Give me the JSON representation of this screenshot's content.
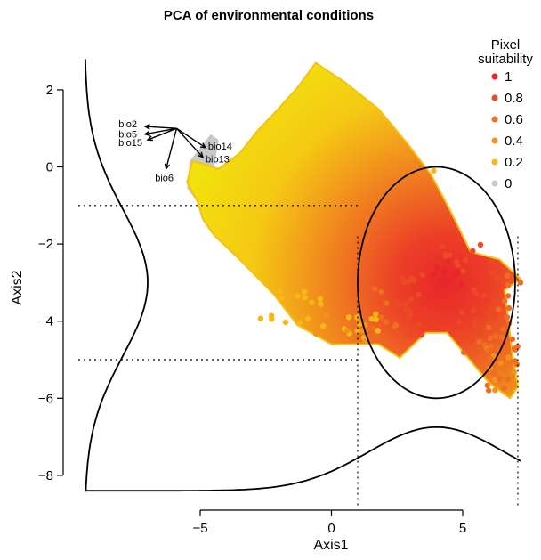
{
  "chart_data": {
    "type": "scatter",
    "title": "PCA of environmental conditions",
    "xlabel": "Axis1",
    "ylabel": "Axis2",
    "xlim": [
      -10.1,
      7.3
    ],
    "ylim": [
      -8.6,
      2.9
    ],
    "x_ticks": [
      {
        "value": -5,
        "label": "−5"
      },
      {
        "value": 0,
        "label": "0"
      },
      {
        "value": 5,
        "label": "5"
      }
    ],
    "y_ticks": [
      {
        "value": 2,
        "label": "2"
      },
      {
        "value": 0,
        "label": "0"
      },
      {
        "value": -2,
        "label": "−2"
      },
      {
        "value": -4,
        "label": "−4"
      },
      {
        "value": -6,
        "label": "−6"
      },
      {
        "value": -8,
        "label": "−8"
      }
    ],
    "grid": false,
    "legend": {
      "title_lines": [
        "Pixel",
        "suitability"
      ],
      "placement": "top-right",
      "entries": [
        {
          "label": "1",
          "color": "#e8262a"
        },
        {
          "label": "0.8",
          "color": "#ec4a26"
        },
        {
          "label": "0.6",
          "color": "#ef6f22"
        },
        {
          "label": "0.4",
          "color": "#f2931d"
        },
        {
          "label": "0.2",
          "color": "#f5b815"
        },
        {
          "label": "0",
          "color": "#c9c9c9"
        }
      ]
    },
    "point_cloud": {
      "description_values": "environmental pixel scores on PCA axes, colored by suitability",
      "outline": [
        [
          -5.3,
          0.15
        ],
        [
          -5.5,
          -0.4
        ],
        [
          -5.1,
          -0.9
        ],
        [
          -4.9,
          -1.35
        ],
        [
          -4.5,
          -1.75
        ],
        [
          -3.5,
          -2.4
        ],
        [
          -2.2,
          -3.3
        ],
        [
          -1.3,
          -4.1
        ],
        [
          0.0,
          -4.6
        ],
        [
          1.8,
          -4.6
        ],
        [
          2.6,
          -4.95
        ],
        [
          3.6,
          -4.3
        ],
        [
          4.4,
          -4.3
        ],
        [
          5.2,
          -4.95
        ],
        [
          6.0,
          -5.6
        ],
        [
          6.8,
          -6.0
        ],
        [
          7.1,
          -5.7
        ],
        [
          6.9,
          -4.9
        ],
        [
          6.6,
          -3.2
        ],
        [
          7.2,
          -2.9
        ],
        [
          6.4,
          -2.4
        ],
        [
          5.3,
          -2.2
        ],
        [
          4.5,
          -1.1
        ],
        [
          3.8,
          -0.2
        ],
        [
          2.9,
          0.6
        ],
        [
          1.8,
          1.5
        ],
        [
          0.5,
          2.2
        ],
        [
          -0.6,
          2.7
        ],
        [
          -1.3,
          2.05
        ],
        [
          -2.1,
          1.45
        ],
        [
          -2.8,
          0.95
        ],
        [
          -3.5,
          0.35
        ],
        [
          -4.3,
          -0.05
        ],
        [
          -5.0,
          0.1
        ]
      ],
      "high_suitability_center": [
        4.3,
        -3.0
      ]
    },
    "loadings_origin": [
      -5.9,
      1.0
    ],
    "loadings": [
      {
        "name": "bio2",
        "end": [
          -7.1,
          1.05
        ]
      },
      {
        "name": "bio5",
        "end": [
          -7.1,
          0.85
        ]
      },
      {
        "name": "bio15",
        "end": [
          -7.0,
          0.7
        ]
      },
      {
        "name": "bio6",
        "end": [
          -6.3,
          -0.05
        ]
      },
      {
        "name": "bio14",
        "end": [
          -4.8,
          0.5
        ]
      },
      {
        "name": "bio13",
        "end": [
          -4.9,
          0.25
        ]
      }
    ],
    "reference_lines": {
      "horizontal_y": [
        -1.0,
        -5.0
      ],
      "vertical_x": [
        1.0,
        7.1
      ]
    },
    "circle": {
      "center": [
        4.0,
        -3.0
      ],
      "radius": 3.0
    },
    "marginal_x_density": {
      "peak_x": 4.0,
      "baseline_y": -8.4,
      "peak_y": -6.75
    },
    "marginal_y_density": {
      "peak_y": -3.0,
      "baseline_x": -9.4,
      "peak_x": -7.0
    }
  }
}
